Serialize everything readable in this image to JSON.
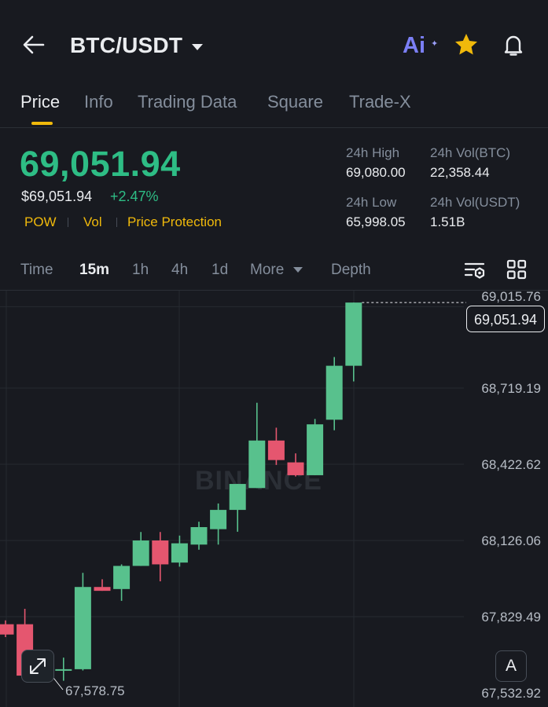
{
  "header": {
    "pair": "BTC/USDT",
    "ai_label": "Ai"
  },
  "tabs": [
    {
      "label": "Price",
      "active": true
    },
    {
      "label": "Info"
    },
    {
      "label": "Trading Data"
    },
    {
      "label": "Square"
    },
    {
      "label": "Trade-X"
    }
  ],
  "price": {
    "last": "69,051.94",
    "usd": "$69,051.94",
    "change": "+2.47%",
    "tags": [
      "POW",
      "Vol",
      "Price Protection"
    ]
  },
  "stats": {
    "high_label": "24h High",
    "high_value": "69,080.00",
    "vol_btc_label": "24h Vol(BTC)",
    "vol_btc_value": "22,358.44",
    "low_label": "24h Low",
    "low_value": "65,998.05",
    "vol_usdt_label": "24h Vol(USDT)",
    "vol_usdt_value": "1.51B"
  },
  "intervals": {
    "time": "Time",
    "m15": "15m",
    "h1": "1h",
    "h4": "4h",
    "d1": "1d",
    "more": "More",
    "depth": "Depth",
    "active": "15m"
  },
  "chart_data": {
    "type": "candlestick",
    "y_ticks": [
      68719.19,
      68422.62,
      68126.06,
      67829.49,
      67532.92
    ],
    "y_tick_labels": [
      "68,719.19",
      "68,422.62",
      "68,126.06",
      "67,829.49",
      "67,532.92"
    ],
    "top_tick_label": "69,015.76",
    "ylim": [
      67500,
      69100
    ],
    "last_price": 69051.94,
    "last_price_label": "69,051.94",
    "low_marker": 67578.75,
    "low_marker_label": "67,578.75",
    "candles": [
      {
        "o": 67800,
        "h": 67815,
        "l": 67750,
        "c": 67760
      },
      {
        "o": 67800,
        "h": 67860,
        "l": 67600,
        "c": 67600
      },
      {
        "o": 67610,
        "h": 67660,
        "l": 67590,
        "c": 67620
      },
      {
        "o": 67620,
        "h": 67670,
        "l": 67580,
        "c": 67625
      },
      {
        "o": 67625,
        "h": 68000,
        "l": 67620,
        "c": 67945
      },
      {
        "o": 67945,
        "h": 67975,
        "l": 67930,
        "c": 67930
      },
      {
        "o": 67937,
        "h": 68033,
        "l": 67891,
        "c": 68027
      },
      {
        "o": 68027,
        "h": 68159,
        "l": 68027,
        "c": 68126
      },
      {
        "o": 68126,
        "h": 68159,
        "l": 67967,
        "c": 68033
      },
      {
        "o": 68040,
        "h": 68145,
        "l": 68024,
        "c": 68115
      },
      {
        "o": 68110,
        "h": 68199,
        "l": 68090,
        "c": 68178
      },
      {
        "o": 68170,
        "h": 68270,
        "l": 68110,
        "c": 68245
      },
      {
        "o": 68245,
        "h": 68346,
        "l": 68160,
        "c": 68346
      },
      {
        "o": 68330,
        "h": 68662,
        "l": 68330,
        "c": 68515
      },
      {
        "o": 68515,
        "h": 68565,
        "l": 68420,
        "c": 68439
      },
      {
        "o": 68430,
        "h": 68465,
        "l": 68375,
        "c": 68380
      },
      {
        "o": 68380,
        "h": 68599,
        "l": 68380,
        "c": 68578
      },
      {
        "o": 68596,
        "h": 68840,
        "l": 68555,
        "c": 68806
      },
      {
        "o": 68806,
        "h": 69052,
        "l": 68745,
        "c": 69052
      }
    ]
  },
  "watermark": "BINANCE",
  "auto_label": "A"
}
